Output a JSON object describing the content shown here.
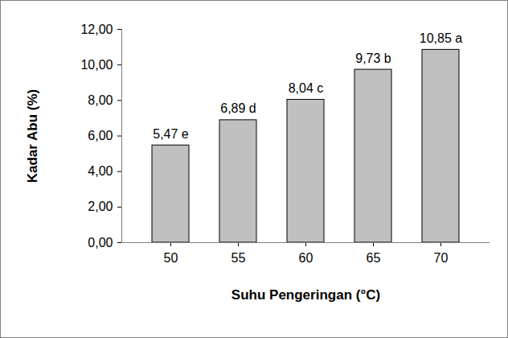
{
  "chart_data": {
    "type": "bar",
    "x_label": "Suhu Pengeringan (°C)",
    "y_label": "Kadar Abu (%)",
    "categories": [
      "50",
      "55",
      "60",
      "65",
      "70"
    ],
    "values": [
      5.47,
      6.89,
      8.04,
      9.73,
      10.85
    ],
    "value_labels": [
      "5,47 e",
      "6,89 d",
      "8,04 c",
      "9,73 b",
      "10,85 a"
    ],
    "data_labels": true,
    "color": "#c0c0c0",
    "ylim": [
      0,
      12
    ],
    "yticks": [
      {
        "value": 0,
        "label": "0,00"
      },
      {
        "value": 2,
        "label": "2,00"
      },
      {
        "value": 4,
        "label": "4,00"
      },
      {
        "value": 6,
        "label": "6,00"
      },
      {
        "value": 8,
        "label": "8,00"
      },
      {
        "value": 10,
        "label": "10,00"
      },
      {
        "value": 12,
        "label": "12,00"
      }
    ],
    "grid": false
  }
}
